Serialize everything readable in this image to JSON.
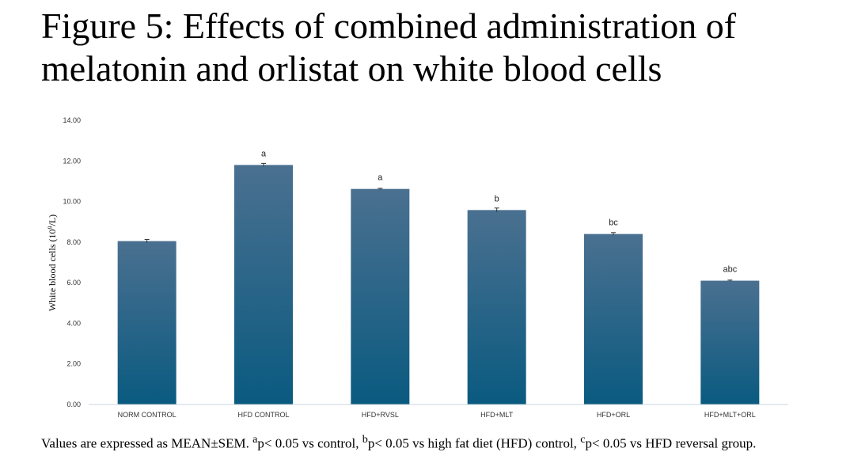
{
  "title": "Figure 5: Effects of combined administration of melatonin and orlistat on white blood cells",
  "footnote": {
    "part1": "Values are expressed as MEAN±SEM. ",
    "sup_a": "a",
    "part2": "p< 0.05 vs control, ",
    "sup_b": "b",
    "part3": "p< 0.05 vs high fat diet (HFD) control, ",
    "sup_c": "c",
    "part4": "p< 0.05 vs HFD reversal group."
  },
  "colors": {
    "bar_top": "#4a7090",
    "bar_bottom": "#0a5a80",
    "axis": "#c8d4dc"
  },
  "chart_data": {
    "type": "bar",
    "title": "",
    "xlabel": "",
    "ylabel_prefix": "White blood cells (10",
    "ylabel_sup": "9",
    "ylabel_suffix": "/L)",
    "ylim": [
      0,
      14
    ],
    "yticks": [
      "0.00",
      "2.00",
      "4.00",
      "6.00",
      "8.00",
      "10.00",
      "12.00",
      "14.00"
    ],
    "grid": false,
    "categories": [
      "NORM CONTROL",
      "HFD CONTROL",
      "HFD+RVSL",
      "HFD+MLT",
      "HFD+ORL",
      "HFD+MLT+ORL"
    ],
    "values": [
      8.05,
      11.8,
      10.62,
      9.58,
      8.4,
      6.1
    ],
    "errors": [
      0.08,
      0.08,
      0.03,
      0.1,
      0.07,
      0.03
    ],
    "annotations": [
      "",
      "a",
      "a",
      "b",
      "bc",
      "abc"
    ]
  }
}
